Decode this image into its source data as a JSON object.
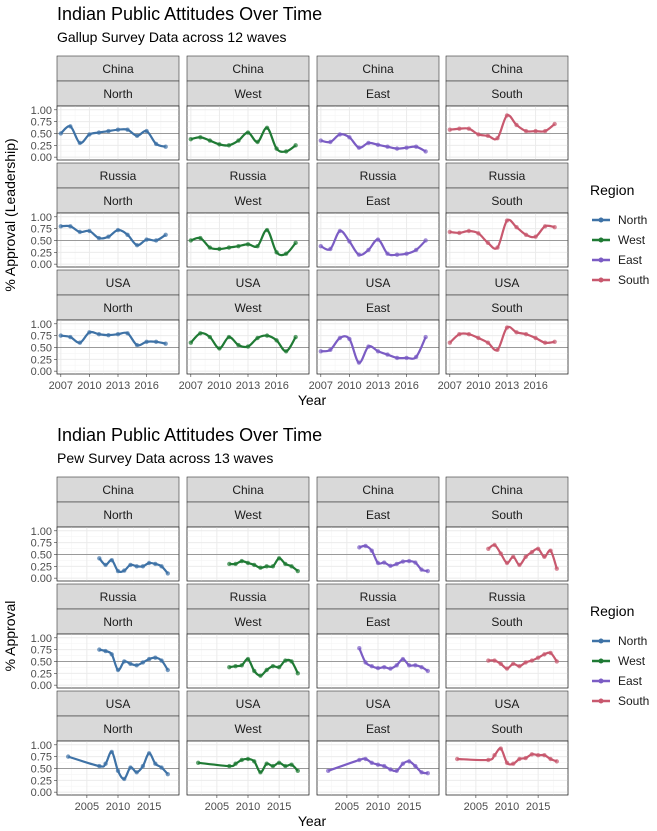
{
  "colors": {
    "North": "#3e72a6",
    "West": "#1f7a34",
    "East": "#7b5cc4",
    "South": "#c8586e",
    "strip_bg": "#d9d9d9",
    "grid_major": "#ebebeb",
    "grid_minor": "#f5f5f5",
    "ref_line": "#9a9a9a",
    "axis_text": "#4d4d4d"
  },
  "chart_data": [
    {
      "type": "line",
      "title": "Indian Public Attitudes Over Time",
      "subtitle": "Gallup Survey Data across 12 waves",
      "xlabel": "Year",
      "ylabel": "% Approval (Leadership)",
      "legend_title": "Region",
      "legend_position": "right",
      "legend_entries": [
        "North",
        "West",
        "East",
        "South"
      ],
      "facet_rows": [
        "China",
        "Russia",
        "USA"
      ],
      "facet_cols": [
        "North",
        "West",
        "East",
        "South"
      ],
      "xlim": [
        2006.6,
        2019.4
      ],
      "xticks": [
        2007,
        2010,
        2013,
        2016
      ],
      "ylim": [
        -0.06,
        1.08
      ],
      "yticks": [
        0,
        0.25,
        0.5,
        0.75,
        1
      ],
      "ytick_labels": [
        "0.00",
        "0.25",
        "0.50",
        "0.75",
        "1.00"
      ],
      "reference_line": 0.5,
      "grid": true,
      "series": [
        {
          "country": "China",
          "region": "North",
          "x": [
            2007,
            2008,
            2009,
            2010,
            2011,
            2012,
            2013,
            2014,
            2015,
            2016,
            2017,
            2018
          ],
          "y": [
            0.5,
            0.65,
            0.3,
            0.48,
            0.52,
            0.55,
            0.58,
            0.58,
            0.45,
            0.55,
            0.28,
            0.22
          ]
        },
        {
          "country": "China",
          "region": "West",
          "x": [
            2007,
            2008,
            2009,
            2010,
            2011,
            2012,
            2013,
            2014,
            2015,
            2016,
            2017,
            2018
          ],
          "y": [
            0.38,
            0.42,
            0.35,
            0.27,
            0.25,
            0.35,
            0.52,
            0.32,
            0.62,
            0.18,
            0.12,
            0.25
          ]
        },
        {
          "country": "China",
          "region": "East",
          "x": [
            2007,
            2008,
            2009,
            2010,
            2011,
            2012,
            2013,
            2014,
            2015,
            2016,
            2017,
            2018
          ],
          "y": [
            0.35,
            0.32,
            0.48,
            0.42,
            0.2,
            0.3,
            0.26,
            0.22,
            0.18,
            0.2,
            0.22,
            0.12
          ]
        },
        {
          "country": "China",
          "region": "South",
          "x": [
            2007,
            2008,
            2009,
            2010,
            2011,
            2012,
            2013,
            2014,
            2015,
            2016,
            2017,
            2018
          ],
          "y": [
            0.58,
            0.6,
            0.6,
            0.48,
            0.45,
            0.4,
            0.88,
            0.68,
            0.55,
            0.55,
            0.55,
            0.7
          ]
        },
        {
          "country": "Russia",
          "region": "North",
          "x": [
            2007,
            2008,
            2009,
            2010,
            2011,
            2012,
            2013,
            2014,
            2015,
            2016,
            2017,
            2018
          ],
          "y": [
            0.8,
            0.8,
            0.68,
            0.7,
            0.55,
            0.58,
            0.72,
            0.62,
            0.4,
            0.52,
            0.5,
            0.62
          ]
        },
        {
          "country": "Russia",
          "region": "West",
          "x": [
            2007,
            2008,
            2009,
            2010,
            2011,
            2012,
            2013,
            2014,
            2015,
            2016,
            2017,
            2018
          ],
          "y": [
            0.5,
            0.55,
            0.35,
            0.32,
            0.35,
            0.38,
            0.42,
            0.38,
            0.72,
            0.25,
            0.22,
            0.45
          ]
        },
        {
          "country": "Russia",
          "region": "East",
          "x": [
            2007,
            2008,
            2009,
            2010,
            2011,
            2012,
            2013,
            2014,
            2015,
            2016,
            2017,
            2018
          ],
          "y": [
            0.38,
            0.32,
            0.7,
            0.48,
            0.2,
            0.3,
            0.52,
            0.22,
            0.2,
            0.22,
            0.3,
            0.5
          ]
        },
        {
          "country": "Russia",
          "region": "South",
          "x": [
            2007,
            2008,
            2009,
            2010,
            2011,
            2012,
            2013,
            2014,
            2015,
            2016,
            2017,
            2018
          ],
          "y": [
            0.68,
            0.66,
            0.7,
            0.65,
            0.45,
            0.35,
            0.92,
            0.78,
            0.62,
            0.58,
            0.8,
            0.78
          ]
        },
        {
          "country": "USA",
          "region": "North",
          "x": [
            2007,
            2008,
            2009,
            2010,
            2011,
            2012,
            2013,
            2014,
            2015,
            2016,
            2017,
            2018
          ],
          "y": [
            0.75,
            0.72,
            0.6,
            0.82,
            0.78,
            0.76,
            0.78,
            0.8,
            0.55,
            0.62,
            0.62,
            0.58
          ]
        },
        {
          "country": "USA",
          "region": "West",
          "x": [
            2007,
            2008,
            2009,
            2010,
            2011,
            2012,
            2013,
            2014,
            2015,
            2016,
            2017,
            2018
          ],
          "y": [
            0.6,
            0.8,
            0.72,
            0.48,
            0.72,
            0.55,
            0.52,
            0.7,
            0.75,
            0.65,
            0.42,
            0.72
          ]
        },
        {
          "country": "USA",
          "region": "East",
          "x": [
            2007,
            2008,
            2009,
            2010,
            2011,
            2012,
            2013,
            2014,
            2015,
            2016,
            2017,
            2018
          ],
          "y": [
            0.42,
            0.45,
            0.7,
            0.68,
            0.18,
            0.52,
            0.42,
            0.35,
            0.28,
            0.28,
            0.3,
            0.72
          ]
        },
        {
          "country": "USA",
          "region": "South",
          "x": [
            2007,
            2008,
            2009,
            2010,
            2011,
            2012,
            2013,
            2014,
            2015,
            2016,
            2017,
            2018
          ],
          "y": [
            0.6,
            0.78,
            0.78,
            0.7,
            0.6,
            0.45,
            0.92,
            0.82,
            0.78,
            0.7,
            0.6,
            0.62
          ]
        }
      ]
    },
    {
      "type": "line",
      "title": "Indian Public Attitudes Over Time",
      "subtitle": "Pew Survey Data across 13 waves",
      "xlabel": "Year",
      "ylabel": "% Approval",
      "legend_title": "Region",
      "legend_position": "right",
      "legend_entries": [
        "North",
        "West",
        "East",
        "South"
      ],
      "facet_rows": [
        "China",
        "Russia",
        "USA"
      ],
      "facet_cols": [
        "North",
        "West",
        "East",
        "South"
      ],
      "xlim": [
        2000.2,
        2019.8
      ],
      "xticks": [
        2005,
        2010,
        2015
      ],
      "ylim": [
        -0.06,
        1.08
      ],
      "yticks": [
        0,
        0.25,
        0.5,
        0.75,
        1
      ],
      "ytick_labels": [
        "0.00",
        "0.25",
        "0.50",
        "0.75",
        "1.00"
      ],
      "reference_line": 0.5,
      "grid": true,
      "series": [
        {
          "country": "China",
          "region": "North",
          "x": [
            2007,
            2008,
            2009,
            2010,
            2011,
            2012,
            2013,
            2014,
            2015,
            2016,
            2017,
            2018
          ],
          "y": [
            0.42,
            0.28,
            0.38,
            0.15,
            0.16,
            0.28,
            0.25,
            0.25,
            0.32,
            0.3,
            0.25,
            0.1
          ]
        },
        {
          "country": "China",
          "region": "West",
          "x": [
            2007,
            2008,
            2009,
            2010,
            2011,
            2012,
            2013,
            2014,
            2015,
            2016,
            2017,
            2018
          ],
          "y": [
            0.3,
            0.3,
            0.36,
            0.32,
            0.28,
            0.22,
            0.25,
            0.25,
            0.42,
            0.3,
            0.25,
            0.15
          ]
        },
        {
          "country": "China",
          "region": "East",
          "x": [
            2007,
            2008,
            2009,
            2010,
            2011,
            2012,
            2013,
            2014,
            2015,
            2016,
            2017,
            2018
          ],
          "y": [
            0.65,
            0.68,
            0.58,
            0.32,
            0.33,
            0.26,
            0.3,
            0.35,
            0.36,
            0.33,
            0.18,
            0.15
          ]
        },
        {
          "country": "China",
          "region": "South",
          "x": [
            2007,
            2008,
            2009,
            2010,
            2011,
            2012,
            2013,
            2014,
            2015,
            2016,
            2017,
            2018
          ],
          "y": [
            0.62,
            0.7,
            0.52,
            0.32,
            0.45,
            0.28,
            0.45,
            0.55,
            0.62,
            0.45,
            0.58,
            0.2
          ]
        },
        {
          "country": "Russia",
          "region": "North",
          "x": [
            2007,
            2008,
            2009,
            2010,
            2011,
            2012,
            2013,
            2014,
            2015,
            2016,
            2017,
            2018
          ],
          "y": [
            0.75,
            0.72,
            0.65,
            0.32,
            0.5,
            0.45,
            0.42,
            0.48,
            0.55,
            0.58,
            0.52,
            0.32
          ]
        },
        {
          "country": "Russia",
          "region": "West",
          "x": [
            2007,
            2008,
            2009,
            2010,
            2011,
            2012,
            2013,
            2014,
            2015,
            2016,
            2017,
            2018
          ],
          "y": [
            0.38,
            0.4,
            0.42,
            0.55,
            0.3,
            0.2,
            0.32,
            0.4,
            0.38,
            0.52,
            0.5,
            0.25
          ]
        },
        {
          "country": "Russia",
          "region": "East",
          "x": [
            2007,
            2008,
            2009,
            2010,
            2011,
            2012,
            2013,
            2014,
            2015,
            2016,
            2017,
            2018
          ],
          "y": [
            0.78,
            0.48,
            0.4,
            0.36,
            0.38,
            0.35,
            0.42,
            0.55,
            0.42,
            0.42,
            0.38,
            0.3
          ]
        },
        {
          "country": "Russia",
          "region": "South",
          "x": [
            2007,
            2008,
            2009,
            2010,
            2011,
            2012,
            2013,
            2014,
            2015,
            2016,
            2017,
            2018
          ],
          "y": [
            0.52,
            0.52,
            0.45,
            0.35,
            0.45,
            0.4,
            0.48,
            0.52,
            0.58,
            0.65,
            0.68,
            0.5
          ]
        },
        {
          "country": "USA",
          "region": "North",
          "x": [
            2002,
            2007,
            2008,
            2009,
            2010,
            2011,
            2012,
            2013,
            2014,
            2015,
            2016,
            2017,
            2018
          ],
          "y": [
            0.75,
            0.55,
            0.6,
            0.85,
            0.45,
            0.28,
            0.52,
            0.42,
            0.55,
            0.82,
            0.6,
            0.52,
            0.38
          ]
        },
        {
          "country": "USA",
          "region": "West",
          "x": [
            2002,
            2007,
            2008,
            2009,
            2010,
            2011,
            2012,
            2013,
            2014,
            2015,
            2016,
            2017,
            2018
          ],
          "y": [
            0.62,
            0.55,
            0.6,
            0.68,
            0.7,
            0.65,
            0.42,
            0.6,
            0.55,
            0.62,
            0.55,
            0.58,
            0.45
          ]
        },
        {
          "country": "USA",
          "region": "East",
          "x": [
            2002,
            2007,
            2008,
            2009,
            2010,
            2011,
            2012,
            2013,
            2014,
            2015,
            2016,
            2017,
            2018
          ],
          "y": [
            0.45,
            0.68,
            0.7,
            0.62,
            0.58,
            0.55,
            0.48,
            0.45,
            0.6,
            0.65,
            0.55,
            0.42,
            0.4
          ]
        },
        {
          "country": "USA",
          "region": "South",
          "x": [
            2002,
            2007,
            2008,
            2009,
            2010,
            2011,
            2012,
            2013,
            2014,
            2015,
            2016,
            2017,
            2018
          ],
          "y": [
            0.7,
            0.68,
            0.78,
            0.92,
            0.62,
            0.6,
            0.7,
            0.72,
            0.8,
            0.78,
            0.78,
            0.7,
            0.65
          ]
        }
      ]
    }
  ]
}
